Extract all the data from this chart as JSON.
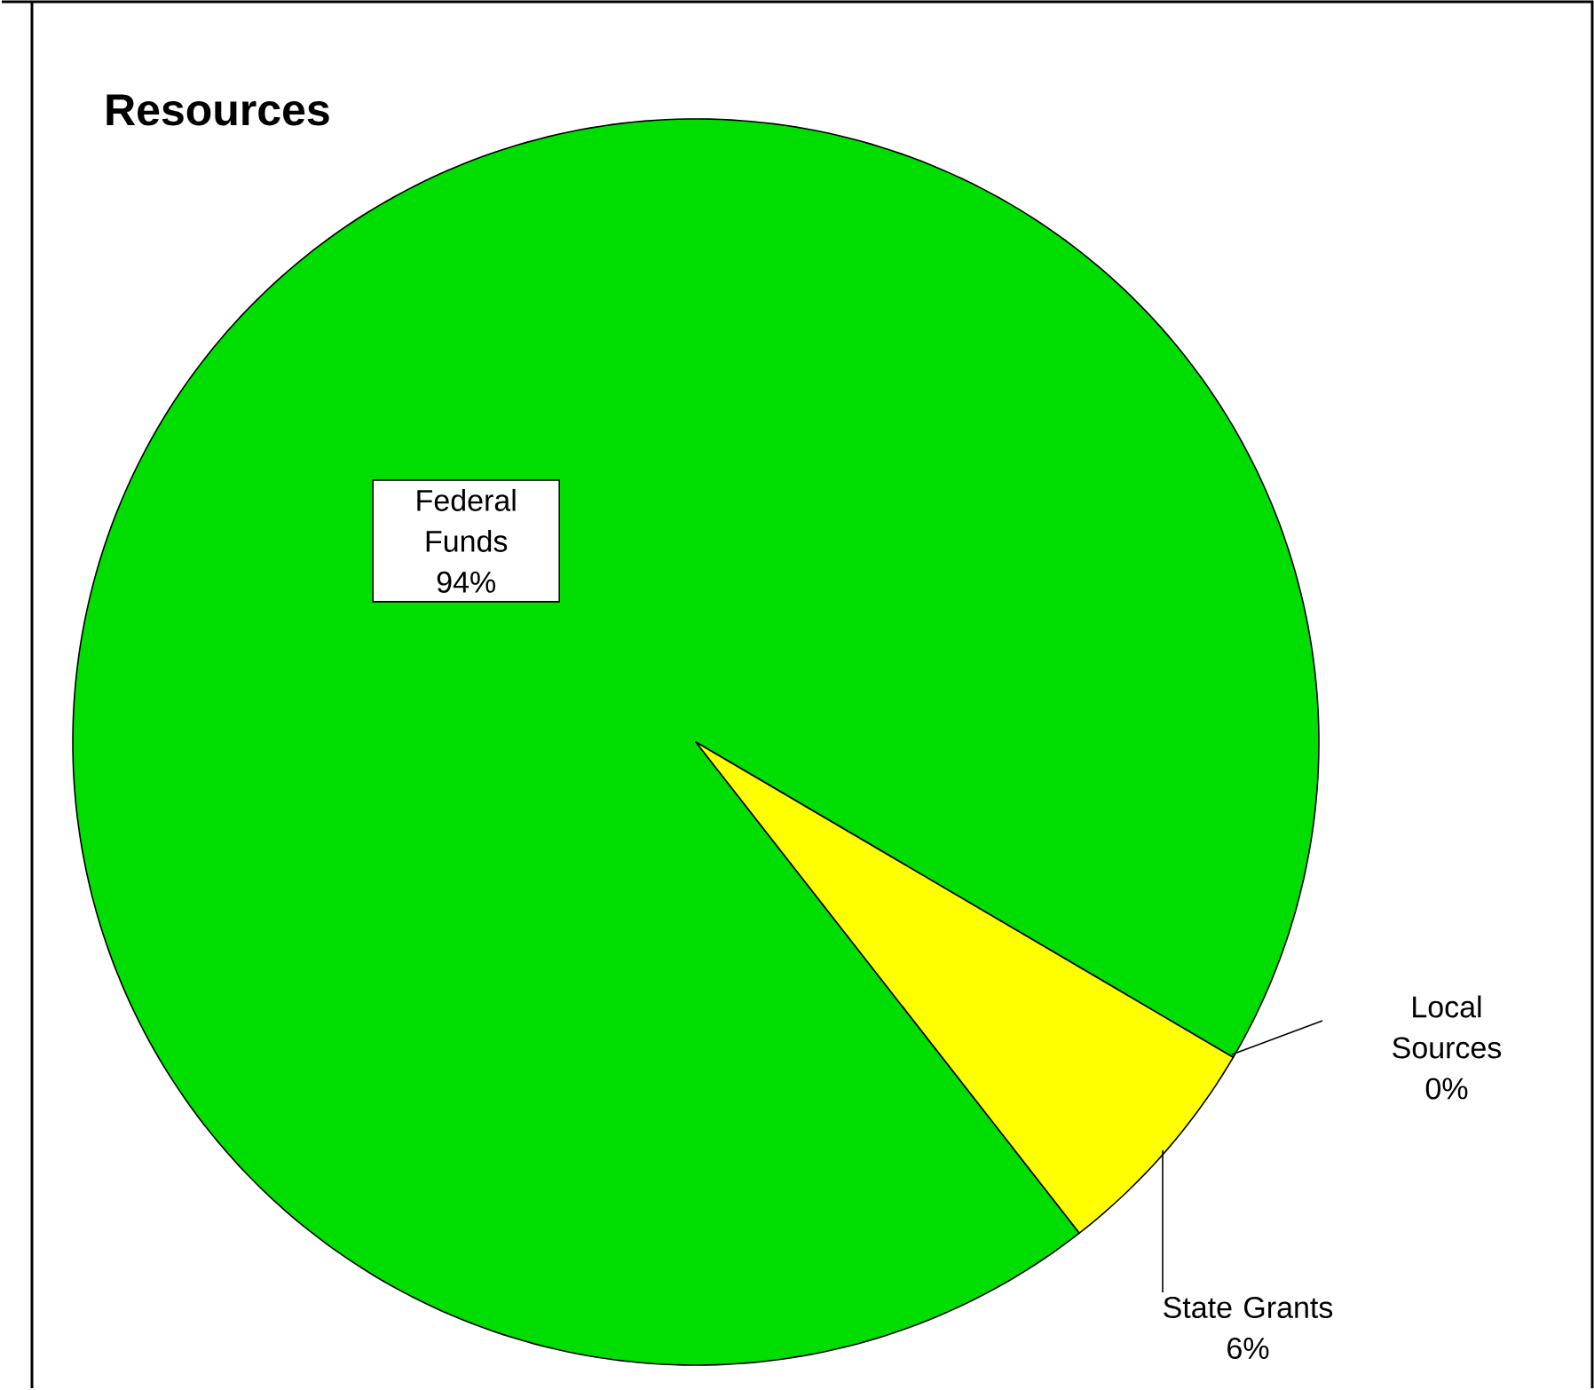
{
  "chart_data": {
    "type": "pie",
    "title": "Resources",
    "categories": [
      "Federal Funds",
      "Local Sources",
      "State Grants"
    ],
    "values": [
      94,
      0,
      6
    ],
    "value_labels": [
      "94%",
      "0%",
      "6%"
    ],
    "colors": [
      "#00dd00",
      "#333399",
      "#ffff00"
    ]
  }
}
